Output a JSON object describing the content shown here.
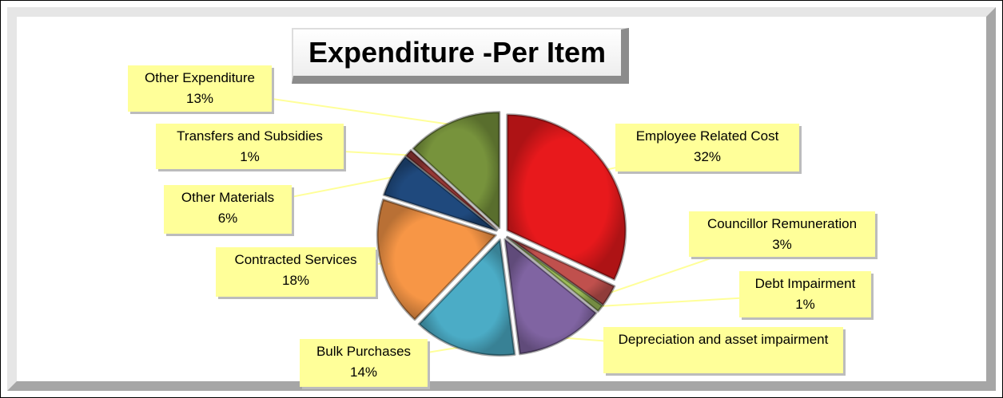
{
  "chart_data": {
    "type": "pie",
    "title": "Expenditure -Per Item",
    "categories": [
      "Employee Related Cost",
      "Councillor Remuneration",
      "Debt Impairment",
      "Depreciation and asset impairment",
      "Bulk Purchases",
      "Contracted Services",
      "Other Materials",
      "Transfers and Subsidies",
      "Other Expenditure"
    ],
    "values": [
      32,
      3,
      1,
      12,
      14,
      18,
      6,
      1,
      13
    ],
    "value_labels": [
      "32%",
      "3%",
      "1%",
      null,
      "14%",
      "18%",
      "6%",
      "1%",
      "13%"
    ],
    "colors": [
      "#e8191c",
      "#c0504d",
      "#9bbb59",
      "#8064a2",
      "#4bacc6",
      "#f79646",
      "#1f497d",
      "#953735",
      "#77933c"
    ]
  }
}
